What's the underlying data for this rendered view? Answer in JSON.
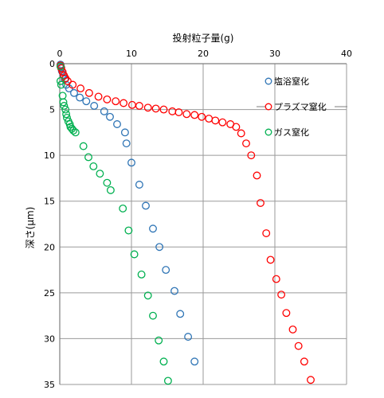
{
  "chart_data": {
    "type": "scatter",
    "xlabel": "投射粒子量(g)",
    "ylabel": "深さ(μm)",
    "xlim": [
      0,
      40
    ],
    "ylim": [
      0,
      35
    ],
    "x_ticks": [
      "0",
      "10",
      "20",
      "30",
      "40"
    ],
    "y_ticks": [
      "0",
      "5",
      "10",
      "15",
      "20",
      "25",
      "30",
      "35"
    ],
    "x_axis_position": "top",
    "y_axis_inverted": true,
    "grid": true,
    "legend_position": "right",
    "marker": "open-circle",
    "series": [
      {
        "name": "塩浴窒化",
        "color": "#2e74b5",
        "points": [
          [
            0.1,
            0.1
          ],
          [
            0.2,
            0.4
          ],
          [
            0.3,
            0.8
          ],
          [
            0.5,
            1.2
          ],
          [
            0.7,
            1.7
          ],
          [
            0.9,
            2.3
          ],
          [
            1.3,
            2.7
          ],
          [
            2.0,
            3.2
          ],
          [
            2.8,
            3.7
          ],
          [
            3.7,
            4.1
          ],
          [
            4.8,
            4.6
          ],
          [
            6.2,
            5.2
          ],
          [
            7.0,
            5.8
          ],
          [
            8.0,
            6.6
          ],
          [
            9.1,
            7.5
          ],
          [
            9.3,
            8.7
          ],
          [
            10.0,
            10.8
          ],
          [
            11.1,
            13.2
          ],
          [
            12.0,
            15.5
          ],
          [
            13.0,
            18.0
          ],
          [
            13.9,
            20.0
          ],
          [
            14.8,
            22.5
          ],
          [
            16.0,
            24.8
          ],
          [
            16.8,
            27.3
          ],
          [
            17.9,
            29.8
          ],
          [
            18.8,
            32.5
          ]
        ]
      },
      {
        "name": "プラズマ窒化",
        "color": "#ff0000",
        "points": [
          [
            0.1,
            0.2
          ],
          [
            0.2,
            0.5
          ],
          [
            0.4,
            0.9
          ],
          [
            0.6,
            1.3
          ],
          [
            0.8,
            1.6
          ],
          [
            1.1,
            1.9
          ],
          [
            1.8,
            2.3
          ],
          [
            2.9,
            2.7
          ],
          [
            4.1,
            3.2
          ],
          [
            5.4,
            3.6
          ],
          [
            6.6,
            3.9
          ],
          [
            7.8,
            4.1
          ],
          [
            8.9,
            4.3
          ],
          [
            10.1,
            4.5
          ],
          [
            11.1,
            4.6
          ],
          [
            12.3,
            4.8
          ],
          [
            13.4,
            4.9
          ],
          [
            14.5,
            5.0
          ],
          [
            15.7,
            5.2
          ],
          [
            16.6,
            5.3
          ],
          [
            17.7,
            5.5
          ],
          [
            18.8,
            5.6
          ],
          [
            19.8,
            5.8
          ],
          [
            20.8,
            6.0
          ],
          [
            21.7,
            6.2
          ],
          [
            22.7,
            6.4
          ],
          [
            23.8,
            6.6
          ],
          [
            24.6,
            6.9
          ],
          [
            25.3,
            7.6
          ],
          [
            26.0,
            8.7
          ],
          [
            26.7,
            10.0
          ],
          [
            27.5,
            12.2
          ],
          [
            28.0,
            15.2
          ],
          [
            28.8,
            18.5
          ],
          [
            29.4,
            21.4
          ],
          [
            30.2,
            23.5
          ],
          [
            30.9,
            25.2
          ],
          [
            31.6,
            27.2
          ],
          [
            32.5,
            29.0
          ],
          [
            33.3,
            30.8
          ],
          [
            34.1,
            32.5
          ],
          [
            35.0,
            34.5
          ]
        ]
      },
      {
        "name": "ガス窒化",
        "color": "#00b050",
        "points": [
          [
            0.1,
            0.3
          ],
          [
            0.1,
            1.9
          ],
          [
            0.2,
            2.3
          ],
          [
            0.4,
            3.5
          ],
          [
            0.5,
            4.2
          ],
          [
            0.6,
            4.6
          ],
          [
            0.8,
            5.0
          ],
          [
            0.9,
            5.5
          ],
          [
            1.0,
            5.9
          ],
          [
            1.2,
            6.3
          ],
          [
            1.4,
            6.6
          ],
          [
            1.5,
            6.9
          ],
          [
            1.7,
            7.1
          ],
          [
            1.9,
            7.3
          ],
          [
            2.2,
            7.5
          ],
          [
            3.3,
            9.0
          ],
          [
            4.0,
            10.2
          ],
          [
            4.7,
            11.2
          ],
          [
            5.6,
            12.0
          ],
          [
            6.6,
            13.0
          ],
          [
            7.1,
            13.8
          ],
          [
            8.8,
            15.8
          ],
          [
            9.6,
            18.2
          ],
          [
            10.4,
            20.8
          ],
          [
            11.4,
            23.0
          ],
          [
            12.3,
            25.3
          ],
          [
            13.0,
            27.5
          ],
          [
            13.8,
            30.2
          ],
          [
            14.5,
            32.5
          ],
          [
            15.1,
            34.6
          ]
        ]
      }
    ]
  }
}
